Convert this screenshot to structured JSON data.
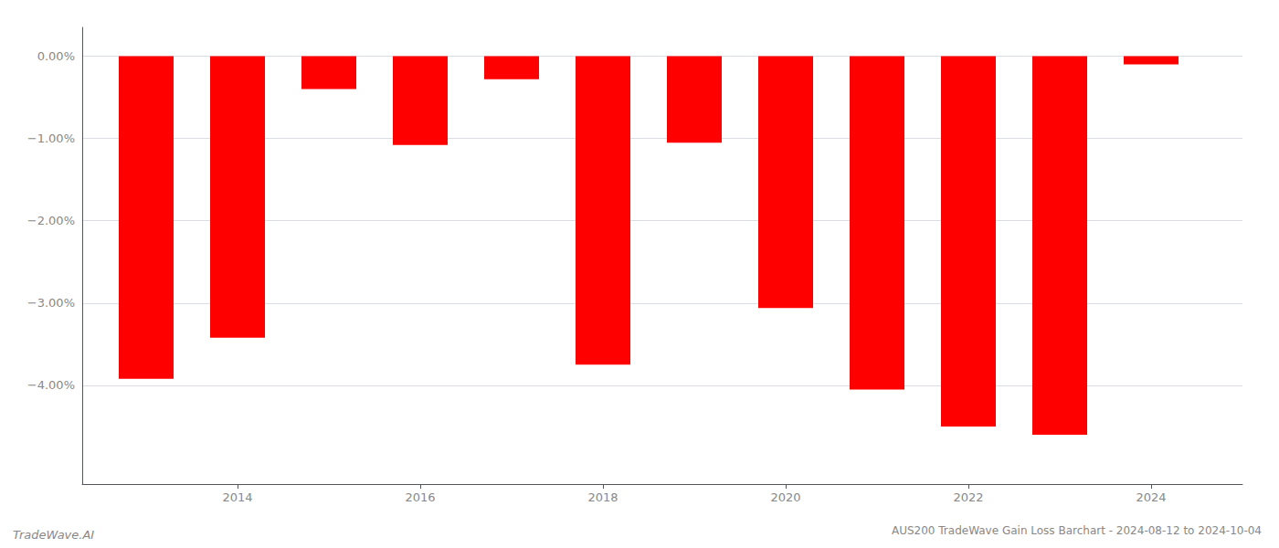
{
  "chart_data": {
    "type": "bar",
    "title": "AUS200 TradeWave Gain Loss Barchart - 2024-08-12 to 2024-10-04",
    "annotations": [
      "TradeWave.AI"
    ],
    "x": [
      2013,
      2014,
      2015,
      2016,
      2017,
      2018,
      2019,
      2020,
      2021,
      2022,
      2023,
      2024
    ],
    "values": [
      -3.92,
      -3.42,
      -0.4,
      -1.08,
      -0.28,
      -3.75,
      -1.05,
      -3.06,
      -4.05,
      -4.5,
      -4.6,
      -0.1
    ],
    "color": "#ff0000",
    "xlim": [
      2012.3,
      2025.0
    ],
    "xticks": [
      2014,
      2016,
      2018,
      2020,
      2022,
      2024
    ],
    "ylim": [
      -5.2,
      0.35
    ],
    "yticks": [
      {
        "value": 0.0,
        "label": "0.00%"
      },
      {
        "value": -1.0,
        "label": "−1.00%"
      },
      {
        "value": -2.0,
        "label": "−2.00%"
      },
      {
        "value": -3.0,
        "label": "−3.00%"
      },
      {
        "value": -4.0,
        "label": "−4.00%"
      }
    ],
    "grid": true
  }
}
